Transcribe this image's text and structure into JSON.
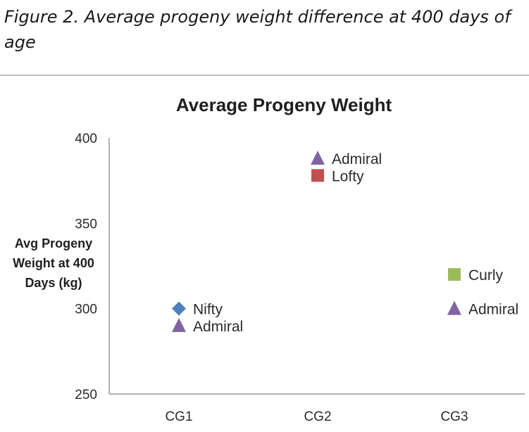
{
  "figure_caption": "Figure 2. Average progeny weight difference at 400 days of age",
  "chart_data": {
    "type": "scatter",
    "title": "Average Progeny Weight",
    "xlabel": "",
    "ylabel": [
      "Avg Progeny",
      "Weight at 400",
      "Days (kg)"
    ],
    "categories": [
      "CG1",
      "CG2",
      "CG3"
    ],
    "ylim": [
      250,
      400
    ],
    "yticks": [
      400,
      350,
      300,
      250
    ],
    "grid": false,
    "legend": "none",
    "points": [
      {
        "category": "CG1",
        "y": 300,
        "label": "Nifty",
        "marker": "diamond",
        "color": "#4f81bd"
      },
      {
        "category": "CG1",
        "y": 290,
        "label": "Admiral",
        "marker": "triangle",
        "color": "#8064a2"
      },
      {
        "category": "CG2",
        "y": 388,
        "label": "Admiral",
        "marker": "triangle",
        "color": "#8064a2"
      },
      {
        "category": "CG2",
        "y": 378,
        "label": "Lofty",
        "marker": "square",
        "color": "#c0504d"
      },
      {
        "category": "CG3",
        "y": 320,
        "label": "Curly",
        "marker": "square",
        "color": "#9bbb59"
      },
      {
        "category": "CG3",
        "y": 300,
        "label": "Admiral",
        "marker": "triangle",
        "color": "#8064a2"
      }
    ]
  }
}
